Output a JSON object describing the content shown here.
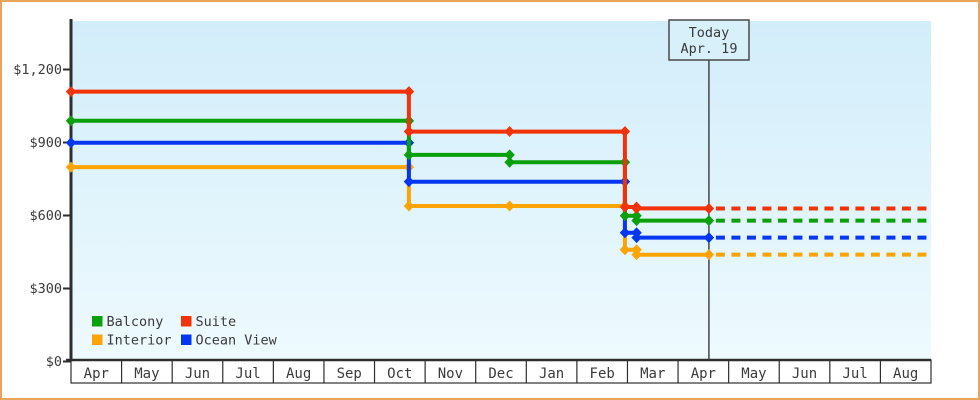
{
  "chart_data": {
    "type": "line",
    "subtype": "step-line price history with markers",
    "x_labels": [
      "Apr",
      "May",
      "Jun",
      "Jul",
      "Aug",
      "Sep",
      "Oct",
      "Nov",
      "Dec",
      "Jan",
      "Feb",
      "Mar",
      "Apr",
      "May",
      "Jun",
      "Jul",
      "Aug"
    ],
    "x_months_total": 17,
    "xlabel": "",
    "ylabel": "",
    "ylim": [
      0,
      1400
    ],
    "grid": false,
    "y_ticks": [
      {
        "value": 0,
        "label": "$0"
      },
      {
        "value": 300,
        "label": "$300"
      },
      {
        "value": 600,
        "label": "$600"
      },
      {
        "value": 900,
        "label": "$900"
      },
      {
        "value": 1200,
        "label": "$1,200"
      }
    ],
    "today": {
      "label": "Today",
      "date_label": "Apr. 19",
      "x": 12.61
    },
    "series": [
      {
        "name": "Interior",
        "color": "#fca403",
        "points": [
          {
            "x": 0,
            "price": 799
          },
          {
            "x": 6.68,
            "price": 799
          },
          {
            "x": 6.68,
            "price": 639
          },
          {
            "x": 8.67,
            "price": 639
          },
          {
            "x": 10.95,
            "price": 639
          },
          {
            "x": 10.95,
            "price": 459
          },
          {
            "x": 11.18,
            "price": 459
          },
          {
            "x": 11.18,
            "price": 439
          },
          {
            "x": 12.61,
            "price": 439
          }
        ],
        "projected_price": 439
      },
      {
        "name": "Ocean View",
        "color": "#0536f0",
        "points": [
          {
            "x": 0,
            "price": 899
          },
          {
            "x": 6.68,
            "price": 899
          },
          {
            "x": 6.68,
            "price": 739
          },
          {
            "x": 10.95,
            "price": 739
          },
          {
            "x": 10.95,
            "price": 529
          },
          {
            "x": 11.18,
            "price": 529
          },
          {
            "x": 11.18,
            "price": 509
          },
          {
            "x": 12.61,
            "price": 509
          }
        ],
        "projected_price": 509
      },
      {
        "name": "Balcony",
        "color": "#0aa00a",
        "points": [
          {
            "x": 0,
            "price": 989
          },
          {
            "x": 6.68,
            "price": 989
          },
          {
            "x": 6.68,
            "price": 849
          },
          {
            "x": 8.67,
            "price": 849
          },
          {
            "x": 8.67,
            "price": 819
          },
          {
            "x": 10.95,
            "price": 819
          },
          {
            "x": 10.95,
            "price": 599
          },
          {
            "x": 11.18,
            "price": 599
          },
          {
            "x": 11.18,
            "price": 579
          },
          {
            "x": 12.61,
            "price": 579
          }
        ],
        "projected_price": 579
      },
      {
        "name": "Suite",
        "color": "#f23208",
        "points": [
          {
            "x": 0,
            "price": 1109
          },
          {
            "x": 6.68,
            "price": 1109
          },
          {
            "x": 6.68,
            "price": 945
          },
          {
            "x": 8.67,
            "price": 945
          },
          {
            "x": 10.95,
            "price": 945
          },
          {
            "x": 10.95,
            "price": 635
          },
          {
            "x": 11.18,
            "price": 635
          },
          {
            "x": 11.18,
            "price": 629
          },
          {
            "x": 12.61,
            "price": 629
          }
        ],
        "projected_price": 629
      }
    ],
    "legend": {
      "position": "bottom-left",
      "rows": [
        [
          {
            "label": "Balcony",
            "color": "#0aa00a"
          },
          {
            "label": "Suite",
            "color": "#f23208"
          }
        ],
        [
          {
            "label": "Interior",
            "color": "#fca403"
          },
          {
            "label": "Ocean View",
            "color": "#0536f0"
          }
        ]
      ]
    },
    "colors": {
      "plot_bg_top": "#d2edfa",
      "plot_bg_bottom": "#eefafe",
      "axis": "#2e2e2e",
      "text": "#3b3b3b",
      "page_border": "#eba45c",
      "today_box_fill": "#d8f0fa",
      "today_box_border": "#4a4a4a"
    }
  }
}
